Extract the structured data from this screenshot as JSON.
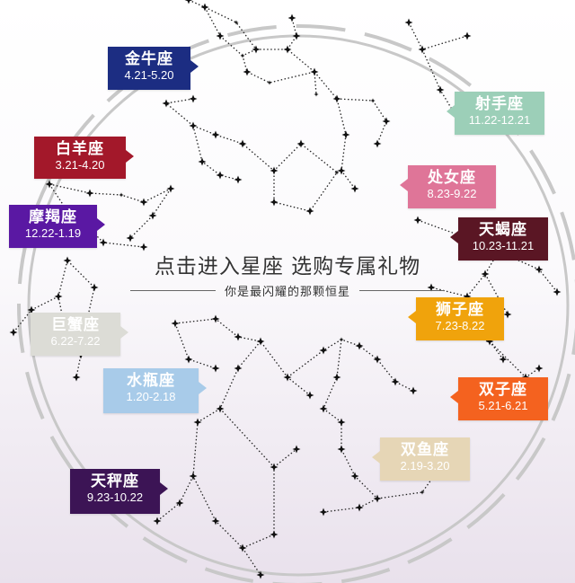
{
  "center": {
    "title": "点击进入星座 选购专属礼物",
    "subtitle": "你是最闪耀的那颗恒星"
  },
  "zodiac": [
    {
      "id": "taurus",
      "name": "金牛座",
      "dates": "4.21-5.20",
      "color": "#1c2d82"
    },
    {
      "id": "sagittarius",
      "name": "射手座",
      "dates": "11.22-12.21",
      "color": "#9ccfb8"
    },
    {
      "id": "aries",
      "name": "白羊座",
      "dates": "3.21-4.20",
      "color": "#a3182a"
    },
    {
      "id": "virgo",
      "name": "处女座",
      "dates": "8.23-9.22",
      "color": "#df7598"
    },
    {
      "id": "capricorn",
      "name": "摩羯座",
      "dates": "12.22-1.19",
      "color": "#5a18a3"
    },
    {
      "id": "scorpio",
      "name": "天蝎座",
      "dates": "10.23-11.21",
      "color": "#5a1624"
    },
    {
      "id": "leo",
      "name": "狮子座",
      "dates": "7.23-8.22",
      "color": "#f0a30c"
    },
    {
      "id": "cancer",
      "name": "巨蟹座",
      "dates": "6.22-7.22",
      "color": "#dcdcd6"
    },
    {
      "id": "aquarius",
      "name": "水瓶座",
      "dates": "1.20-2.18",
      "color": "#a8cbe9"
    },
    {
      "id": "gemini",
      "name": "双子座",
      "dates": "5.21-6.21",
      "color": "#f4621f"
    },
    {
      "id": "pisces",
      "name": "双鱼座",
      "dates": "2.19-3.20",
      "color": "#e6d6b6"
    },
    {
      "id": "libra",
      "name": "天秤座",
      "dates": "9.23-10.22",
      "color": "#3c1455"
    }
  ]
}
